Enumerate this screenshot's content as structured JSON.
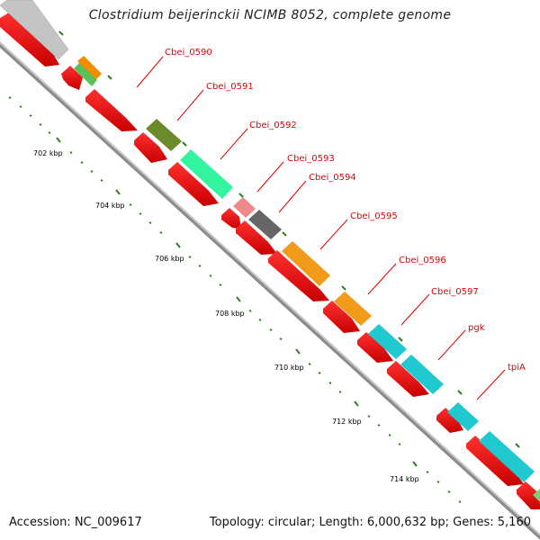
{
  "title": "Clostridium beijerinckii NCIMB 8052, complete genome",
  "footer": {
    "accession": "Accession: NC_009617",
    "summary": "Topology: circular; Length: 6,000,632 bp; Genes: 5,160"
  },
  "colors": {
    "gene_red": "#ee0000",
    "backbone_gray": "#8c8c8c",
    "label_red": "#e00000",
    "tick_green": "#2e7d1f"
  },
  "gene_labels": [
    "Cbei_0590",
    "Cbei_0591",
    "Cbei_0592",
    "Cbei_0593",
    "Cbei_0594",
    "Cbei_0595",
    "Cbei_0596",
    "Cbei_0597",
    "pgk",
    "tpiA"
  ],
  "kbp_ticks": [
    "702 kbp",
    "704 kbp",
    "706 kbp",
    "708 kbp",
    "710 kbp",
    "712 kbp",
    "714 kbp"
  ]
}
